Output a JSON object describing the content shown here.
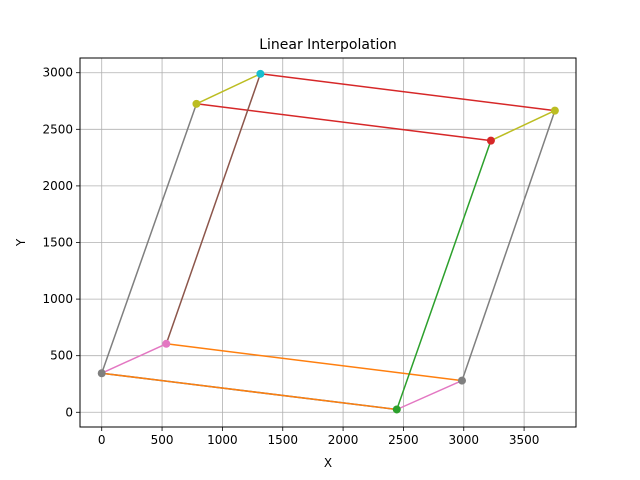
{
  "chart_data": {
    "type": "line",
    "title": "Linear Interpolation",
    "xlabel": "X",
    "ylabel": "Y",
    "xlim": [
      -180,
      3930
    ],
    "ylim": [
      -130,
      3130
    ],
    "xticks": [
      0,
      500,
      1000,
      1500,
      2000,
      2500,
      3000,
      3500
    ],
    "yticks": [
      0,
      500,
      1000,
      1500,
      2000,
      2500,
      3000
    ],
    "grid": true,
    "legend": "none",
    "series": [
      {
        "color": "#1f77b4",
        "points": [
          [
            0,
            345
          ],
          [
            2445,
            25
          ]
        ],
        "markers": false
      },
      {
        "color": "#ff7f0e",
        "points": [
          [
            0,
            345
          ],
          [
            2445,
            25
          ]
        ],
        "markers": false
      },
      {
        "color": "#ff7f0e",
        "points": [
          [
            535,
            605
          ],
          [
            2985,
            280
          ]
        ],
        "markers": false
      },
      {
        "color": "#2ca02c",
        "points": [
          [
            2445,
            25
          ],
          [
            3225,
            2400
          ]
        ],
        "markers": false
      },
      {
        "color": "#d62728",
        "points": [
          [
            1315,
            2990
          ],
          [
            3755,
            2665
          ]
        ],
        "markers": false
      },
      {
        "color": "#d62728",
        "points": [
          [
            785,
            2725
          ],
          [
            3225,
            2400
          ]
        ],
        "markers": false
      },
      {
        "color": "#8c564b",
        "points": [
          [
            535,
            605
          ],
          [
            1315,
            2990
          ]
        ],
        "markers": false
      },
      {
        "color": "#e377c2",
        "points": [
          [
            0,
            345
          ],
          [
            535,
            605
          ]
        ],
        "markers": false
      },
      {
        "color": "#e377c2",
        "points": [
          [
            2445,
            25
          ],
          [
            2985,
            280
          ]
        ],
        "markers": false
      },
      {
        "color": "#7f7f7f",
        "points": [
          [
            0,
            345
          ],
          [
            785,
            2725
          ]
        ],
        "markers": false
      },
      {
        "color": "#7f7f7f",
        "points": [
          [
            2985,
            280
          ],
          [
            3755,
            2665
          ]
        ],
        "markers": false
      },
      {
        "color": "#bcbd22",
        "points": [
          [
            785,
            2725
          ],
          [
            1315,
            2990
          ]
        ],
        "markers": false
      },
      {
        "color": "#bcbd22",
        "points": [
          [
            3225,
            2400
          ],
          [
            3755,
            2665
          ]
        ],
        "markers": false
      }
    ],
    "points": [
      {
        "x": 0,
        "y": 345,
        "color": "#7f7f7f"
      },
      {
        "x": 535,
        "y": 605,
        "color": "#e377c2"
      },
      {
        "x": 2445,
        "y": 25,
        "color": "#2ca02c"
      },
      {
        "x": 2985,
        "y": 280,
        "color": "#7f7f7f"
      },
      {
        "x": 785,
        "y": 2725,
        "color": "#bcbd22"
      },
      {
        "x": 1315,
        "y": 2990,
        "color": "#17becf"
      },
      {
        "x": 3225,
        "y": 2400,
        "color": "#d62728"
      },
      {
        "x": 3755,
        "y": 2665,
        "color": "#bcbd22"
      }
    ]
  }
}
